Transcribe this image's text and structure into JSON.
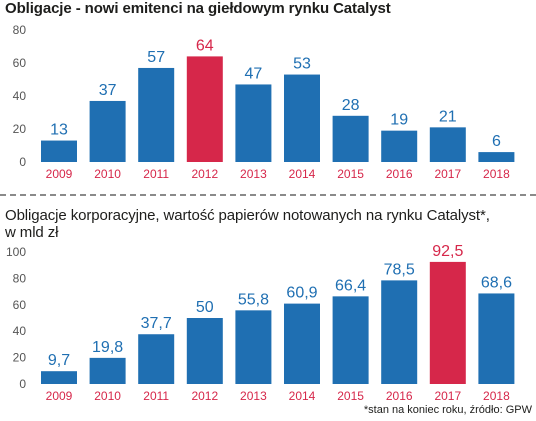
{
  "colors": {
    "bar": "#1f6fb2",
    "highlight": "#d6274a",
    "year_label": "#d6274a",
    "axis_text": "#555555",
    "divider": "#8a8a8a"
  },
  "chart_data": [
    {
      "type": "bar",
      "title": "Obligacje - nowi emitenci na giełdowym rynku Catalyst",
      "categories": [
        "2009",
        "2010",
        "2011",
        "2012",
        "2013",
        "2014",
        "2015",
        "2016",
        "2017",
        "2018"
      ],
      "values": [
        13,
        37,
        57,
        64,
        47,
        53,
        28,
        19,
        21,
        6
      ],
      "value_labels": [
        "13",
        "37",
        "57",
        "64",
        "47",
        "53",
        "28",
        "19",
        "21",
        "6"
      ],
      "highlight_index": 3,
      "yticks": [
        "0",
        "20",
        "40",
        "60",
        "80"
      ],
      "ylim": [
        0,
        80
      ],
      "grid": false
    },
    {
      "type": "bar",
      "title": "Obligacje korporacyjne, wartość papierów notowanych na rynku Catalyst*,",
      "subtitle": "w mld zł",
      "categories": [
        "2009",
        "2010",
        "2011",
        "2012",
        "2013",
        "2014",
        "2015",
        "2016",
        "2017",
        "2018"
      ],
      "values": [
        9.7,
        19.8,
        37.7,
        50,
        55.8,
        60.9,
        66.4,
        78.5,
        92.5,
        68.6
      ],
      "value_labels": [
        "9,7",
        "19,8",
        "37,7",
        "50",
        "55,8",
        "60,9",
        "66,4",
        "78,5",
        "92,5",
        "68,6"
      ],
      "highlight_index": 8,
      "yticks": [
        "0",
        "20",
        "40",
        "60",
        "80",
        "100"
      ],
      "ylim": [
        0,
        100
      ],
      "grid": false
    }
  ],
  "footnote": "*stan na koniec roku, źródło: GPW"
}
